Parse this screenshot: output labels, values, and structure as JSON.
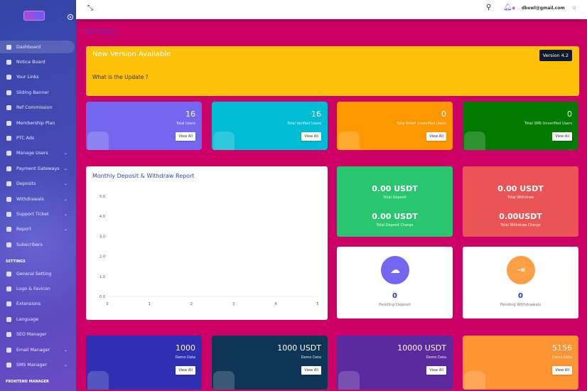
{
  "sidebar": {
    "items": [
      {
        "label": "Dashboard",
        "icon": "home-icon",
        "active": true
      },
      {
        "label": "Notice Board",
        "icon": "bell-icon"
      },
      {
        "label": "Your Links",
        "icon": "link-icon"
      },
      {
        "label": "Sliding Banner",
        "icon": "gear-icon"
      },
      {
        "label": "Ref Commission",
        "icon": "money-bag-icon"
      },
      {
        "label": "Membership Plan",
        "icon": "plan-icon"
      },
      {
        "label": "PTC Ads",
        "icon": "link-icon"
      },
      {
        "label": "Manage Users",
        "icon": "users-icon",
        "chevron": true
      },
      {
        "label": "Payment Gateways",
        "icon": "credit-card-icon",
        "chevron": true
      },
      {
        "label": "Deposits",
        "icon": "credit-card-icon",
        "chevron": true
      },
      {
        "label": "Withdrawals",
        "icon": "bank-icon",
        "chevron": true
      },
      {
        "label": "Support Ticket",
        "icon": "ticket-icon",
        "chevron": true
      },
      {
        "label": "Report",
        "icon": "list-icon",
        "chevron": true
      },
      {
        "label": "Subscribers",
        "icon": "subscribers-icon"
      }
    ],
    "settings_label": "SETTINGS",
    "settings": [
      {
        "label": "General Setting",
        "icon": "gear-icon"
      },
      {
        "label": "Logo & Favicon",
        "icon": "image-icon"
      },
      {
        "label": "Extensions",
        "icon": "extensions-icon"
      },
      {
        "label": "Language",
        "icon": "language-icon"
      },
      {
        "label": "SEO Manager",
        "icon": "globe-icon"
      },
      {
        "label": "Email Manager",
        "icon": "envelope-icon",
        "chevron": true
      },
      {
        "label": "SMS Manager",
        "icon": "mobile-icon",
        "chevron": true
      }
    ],
    "frontend_label": "FRONTEND MANAGER"
  },
  "header": {
    "email": "dkewl@gmail.com"
  },
  "breadcrumb": "Dashboard",
  "banner": {
    "title": "New Version Available",
    "subtitle": "What is the Update ?",
    "version": "Version 4.2"
  },
  "view_all": "View All",
  "top_cards": [
    {
      "value": "16",
      "label": "Total Users",
      "color": "#7367f0",
      "icon": "users-icon"
    },
    {
      "value": "16",
      "label": "Total Verified Users",
      "color": "#00bcd4",
      "icon": "users-icon"
    },
    {
      "value": "0",
      "label": "Total Email Unverified Users",
      "color": "#ff9800",
      "icon": "envelope-icon"
    },
    {
      "value": "0",
      "label": "Total SMS Unverified Users",
      "color": "#007a00",
      "icon": "cart-icon"
    }
  ],
  "chart_data": {
    "type": "line",
    "title": "Monthly Deposit & Withdraw Report",
    "x_ticks": [
      "0",
      "1",
      "2",
      "3",
      "4",
      "5"
    ],
    "y_ticks": [
      "0.0",
      "1.0",
      "2.0",
      "3.0",
      "4.0",
      "5.0"
    ],
    "xlim": [
      0,
      5
    ],
    "ylim": [
      0,
      5
    ],
    "series": []
  },
  "deposit_card": {
    "color": "#28c76f",
    "total": "0.00 USDT",
    "total_label": "Total Deposit",
    "charge": "0.00 USDT",
    "charge_label": "Total Deposit Charge"
  },
  "withdraw_card": {
    "color": "#ea5455",
    "total": "0.00 USDT",
    "total_label": "Total Withdraw",
    "charge": "0.00USDT",
    "charge_label": "Total Withdraw Charge"
  },
  "pending": [
    {
      "value": "0",
      "label": "Pending Deposit",
      "color": "#7367f0",
      "icon": "cloud-download-icon"
    },
    {
      "value": "0",
      "label": "Pending Withdrawals",
      "color": "#ff9f43",
      "icon": "sign-out-icon"
    }
  ],
  "bottom_cards": [
    {
      "value": "1000",
      "label": "Demo Data",
      "color": "#2f2fb3",
      "icon": "wallet-icon"
    },
    {
      "value": "1000 USDT",
      "label": "Demo Data",
      "color": "#0e3556",
      "icon": "hand-dollar-icon"
    },
    {
      "value": "10000 USDT",
      "label": "Demo Data",
      "color": "#5b2a9e",
      "icon": "money-icon"
    },
    {
      "value": "5156",
      "label": "Demo Data",
      "color": "#ff9433",
      "icon": "coins-icon"
    }
  ]
}
